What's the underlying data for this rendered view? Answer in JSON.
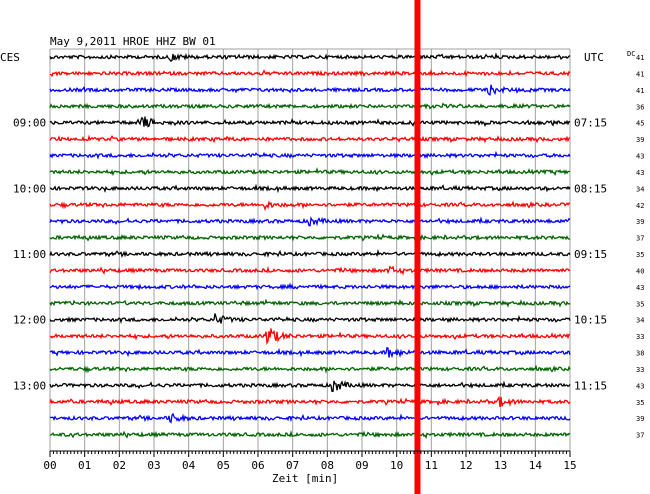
{
  "header": {
    "title": "May 9,2011  HROE HHZ BW 01",
    "left_zone": "CES",
    "right_zone": "UTC",
    "dc_label": "DC"
  },
  "chart_data": {
    "type": "line",
    "xlabel": "Zeit [min]",
    "xlim": [
      0,
      15
    ],
    "x_ticks": [
      "00",
      "01",
      "02",
      "03",
      "04",
      "05",
      "06",
      "07",
      "08",
      "09",
      "10",
      "11",
      "12",
      "13",
      "14",
      "15"
    ],
    "trace_colors": [
      "#000000",
      "#ff0000",
      "#0000ff",
      "#006400"
    ],
    "marker_color": "#ff0000",
    "marker_time_min": 10.6,
    "left_hour_labels": [
      {
        "row": 4,
        "text": "09:00"
      },
      {
        "row": 8,
        "text": "10:00"
      },
      {
        "row": 12,
        "text": "11:00"
      },
      {
        "row": 16,
        "text": "12:00"
      },
      {
        "row": 20,
        "text": "13:00"
      }
    ],
    "right_hour_labels": [
      {
        "row": 4,
        "text": "07:15"
      },
      {
        "row": 8,
        "text": "08:15"
      },
      {
        "row": 12,
        "text": "09:15"
      },
      {
        "row": 16,
        "text": "10:15"
      },
      {
        "row": 20,
        "text": "11:15"
      }
    ],
    "dc_offsets": [
      "41",
      "41",
      "41",
      "36",
      "45",
      "39",
      "43",
      "43",
      "34",
      "42",
      "39",
      "37",
      "35",
      "40",
      "43",
      "35",
      "34",
      "33",
      "38",
      "33",
      "43",
      "35",
      "39",
      "37"
    ],
    "events": [
      {
        "row": 0,
        "time_min": 3.5,
        "amplitude": 3
      },
      {
        "row": 2,
        "time_min": 12.7,
        "amplitude": 4
      },
      {
        "row": 4,
        "time_min": 2.7,
        "amplitude": 6
      },
      {
        "row": 9,
        "time_min": 6.2,
        "amplitude": 3
      },
      {
        "row": 10,
        "time_min": 7.5,
        "amplitude": 4
      },
      {
        "row": 13,
        "time_min": 9.8,
        "amplitude": 3
      },
      {
        "row": 16,
        "time_min": 4.8,
        "amplitude": 5
      },
      {
        "row": 17,
        "time_min": 6.3,
        "amplitude": 10
      },
      {
        "row": 18,
        "time_min": 9.8,
        "amplitude": 4
      },
      {
        "row": 20,
        "time_min": 8.2,
        "amplitude": 6
      },
      {
        "row": 21,
        "time_min": 13.0,
        "amplitude": 4
      },
      {
        "row": 22,
        "time_min": 3.5,
        "amplitude": 4
      }
    ]
  }
}
